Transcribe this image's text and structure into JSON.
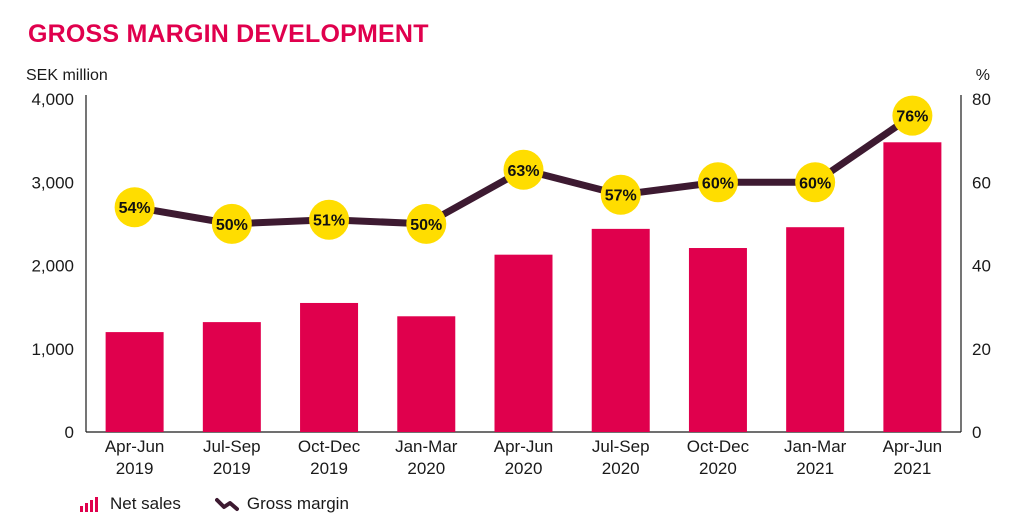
{
  "title": "GROSS MARGIN DEVELOPMENT",
  "colors": {
    "title": "#e0004d",
    "bar": "#e0004d",
    "line": "#3d1a31",
    "marker": "#ffdd00",
    "axis": "#1a1a1a"
  },
  "chart_data": {
    "type": "bar",
    "title": "GROSS MARGIN DEVELOPMENT",
    "ylabel": "SEK million",
    "y2label": "%",
    "ylim": [
      0,
      4000
    ],
    "y2lim": [
      0,
      80
    ],
    "yticks": [
      "0",
      "1,000",
      "2,000",
      "3,000",
      "4,000"
    ],
    "y2ticks": [
      "0",
      "20",
      "40",
      "60",
      "80"
    ],
    "categories": [
      [
        "Apr-Jun",
        "2019"
      ],
      [
        "Jul-Sep",
        "2019"
      ],
      [
        "Oct-Dec",
        "2019"
      ],
      [
        "Jan-Mar",
        "2020"
      ],
      [
        "Apr-Jun",
        "2020"
      ],
      [
        "Jul-Sep",
        "2020"
      ],
      [
        "Oct-Dec",
        "2020"
      ],
      [
        "Jan-Mar",
        "2021"
      ],
      [
        "Apr-Jun",
        "2021"
      ]
    ],
    "series": [
      {
        "name": "Net sales",
        "type": "bar",
        "axis": "left",
        "values": [
          1200,
          1320,
          1550,
          1390,
          2130,
          2440,
          2210,
          2460,
          3480
        ]
      },
      {
        "name": "Gross margin",
        "type": "line",
        "axis": "right",
        "values": [
          54,
          50,
          51,
          50,
          63,
          57,
          60,
          60,
          76
        ],
        "labels": [
          "54%",
          "50%",
          "51%",
          "50%",
          "63%",
          "57%",
          "60%",
          "60%",
          "76%"
        ]
      }
    ],
    "grid": false,
    "legend": "bottom-left"
  },
  "legend": {
    "net_sales": "Net sales",
    "gross_margin": "Gross margin"
  }
}
